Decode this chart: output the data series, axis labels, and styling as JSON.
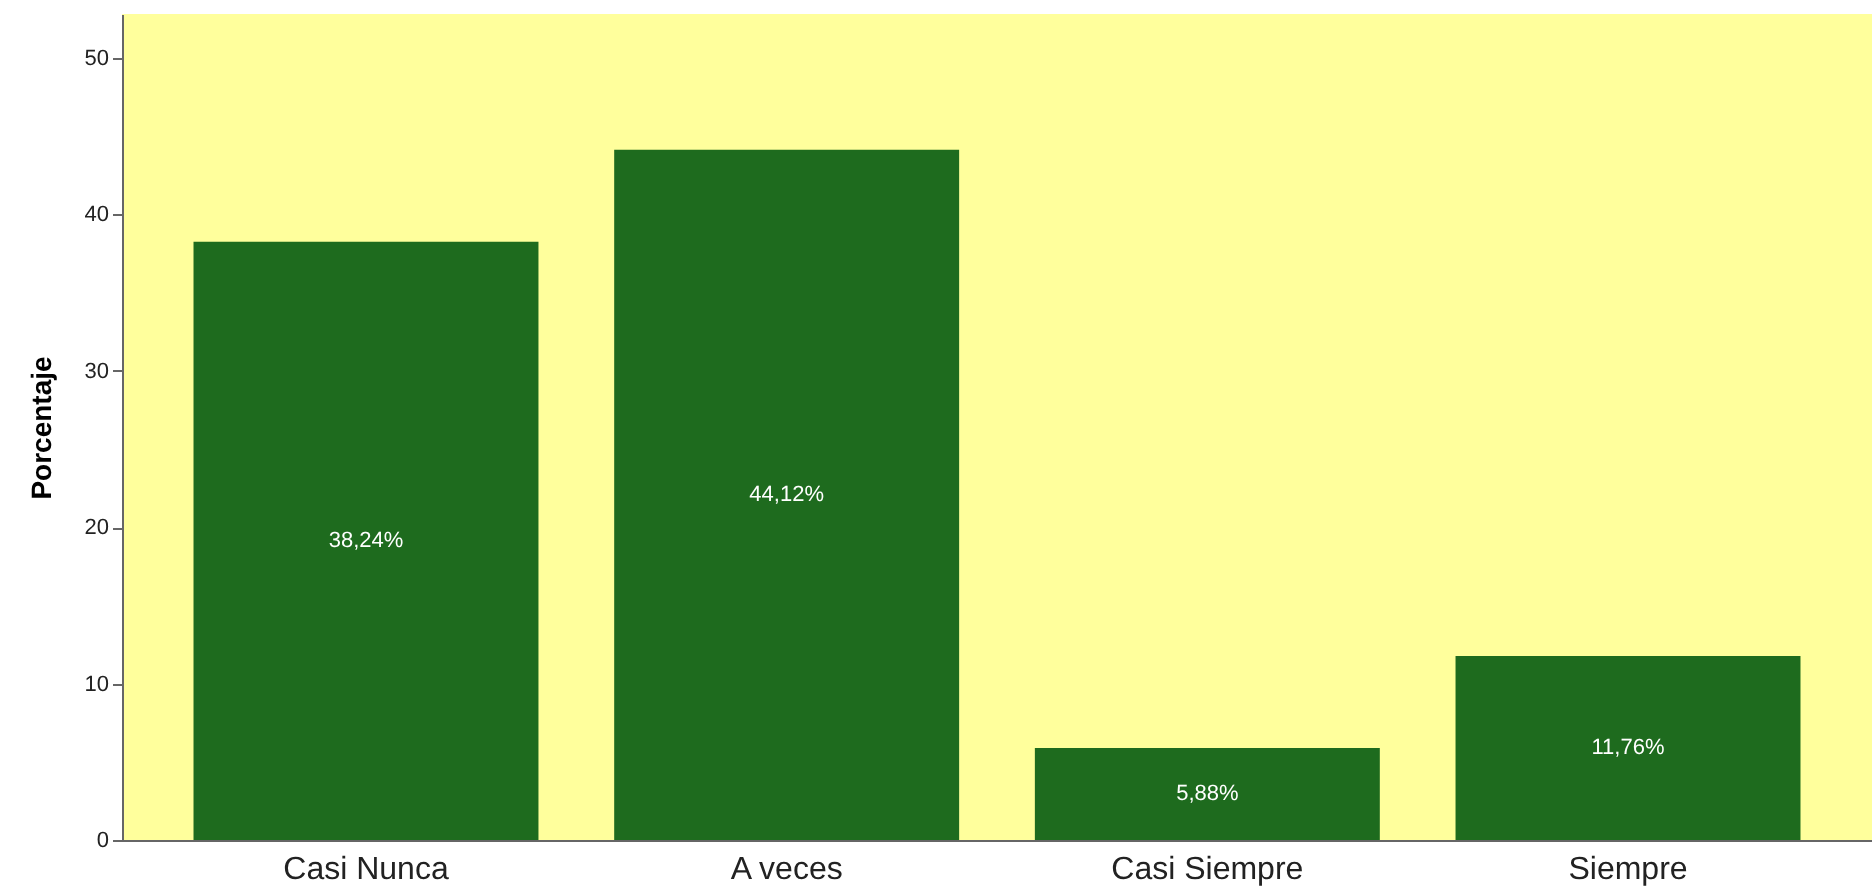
{
  "chart_data": {
    "type": "bar",
    "ylabel": "Porcentaje",
    "categories": [
      "Casi Nunca",
      "A veces",
      "Casi Siempre",
      "Siempre"
    ],
    "values": [
      38.24,
      44.12,
      5.88,
      11.76
    ],
    "value_labels": [
      "38,24%",
      "44,12%",
      "5,88%",
      "11,76%"
    ],
    "color": "#1e6b1e",
    "ylim": [
      0,
      52.8
    ],
    "yticks": [
      0,
      10,
      20,
      30,
      40,
      50
    ],
    "grid": false
  }
}
